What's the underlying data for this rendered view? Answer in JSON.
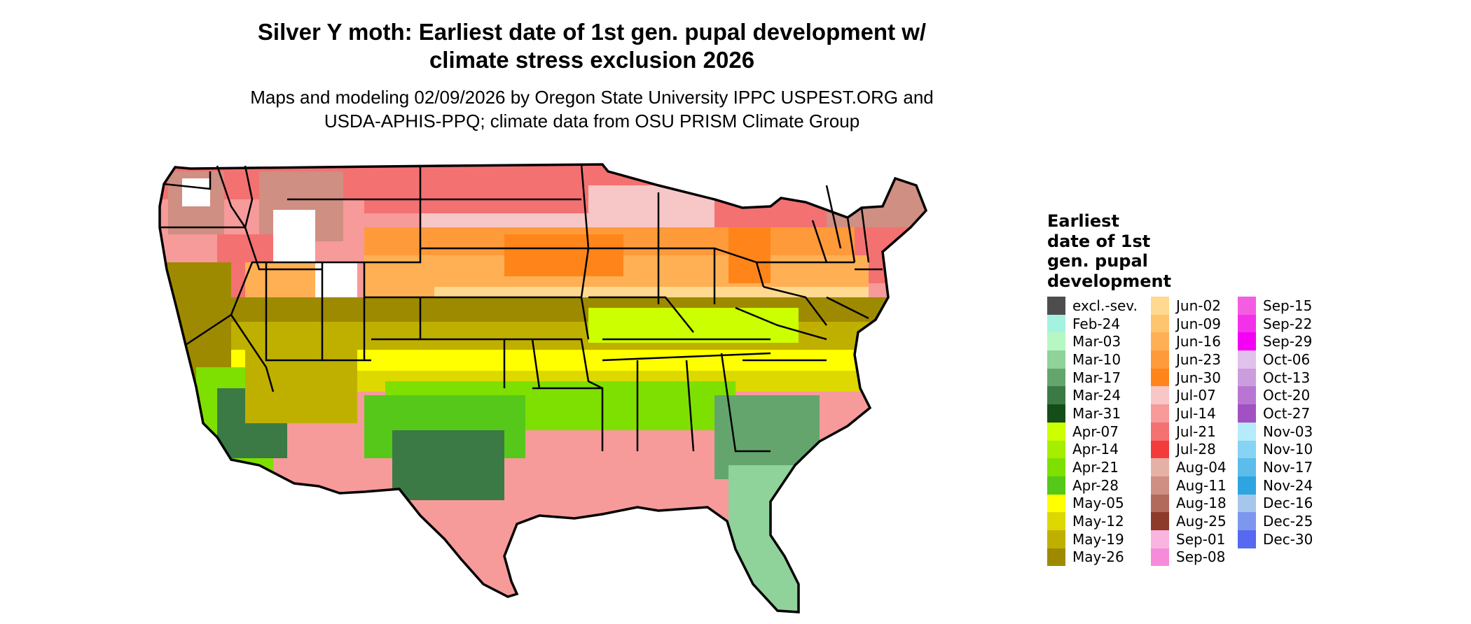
{
  "title_line1": "Silver Y moth: Earliest date of 1st gen. pupal development w/",
  "title_line2": "climate stress exclusion 2026",
  "subtitle_line1": "Maps and modeling 02/09/2026 by Oregon State University IPPC USPEST.ORG and",
  "subtitle_line2": "USDA-APHIS-PPQ; climate data from OSU PRISM Climate Group",
  "legend": {
    "title_lines": [
      "Earliest",
      "date of 1st",
      "gen. pupal",
      "development"
    ],
    "columns": [
      [
        {
          "label": "excl.-sev.",
          "color": "#4d4d4d"
        },
        {
          "label": "Feb-24",
          "color": "#a6f2e1"
        },
        {
          "label": "Mar-03",
          "color": "#b6f7c3"
        },
        {
          "label": "Mar-10",
          "color": "#8fd29a"
        },
        {
          "label": "Mar-17",
          "color": "#63a56d"
        },
        {
          "label": "Mar-24",
          "color": "#3b7a45"
        },
        {
          "label": "Mar-31",
          "color": "#154d18"
        },
        {
          "label": "Apr-07",
          "color": "#ccff00"
        },
        {
          "label": "Apr-14",
          "color": "#a6ee00"
        },
        {
          "label": "Apr-21",
          "color": "#7ee000"
        },
        {
          "label": "Apr-28",
          "color": "#55c81a"
        },
        {
          "label": "May-05",
          "color": "#ffff00"
        },
        {
          "label": "May-12",
          "color": "#ddd800"
        },
        {
          "label": "May-19",
          "color": "#bfb000"
        },
        {
          "label": "May-26",
          "color": "#9e8a00"
        }
      ],
      [
        {
          "label": "Jun-02",
          "color": "#ffd98f"
        },
        {
          "label": "Jun-09",
          "color": "#ffc46e"
        },
        {
          "label": "Jun-16",
          "color": "#ffb055"
        },
        {
          "label": "Jun-23",
          "color": "#ff9a3a"
        },
        {
          "label": "Jun-30",
          "color": "#ff851a"
        },
        {
          "label": "Jul-07",
          "color": "#f7c6c6"
        },
        {
          "label": "Jul-14",
          "color": "#f69a9a"
        },
        {
          "label": "Jul-21",
          "color": "#f47171"
        },
        {
          "label": "Jul-28",
          "color": "#f23c3c"
        },
        {
          "label": "Aug-04",
          "color": "#e5b1a6"
        },
        {
          "label": "Aug-11",
          "color": "#cf8f82"
        },
        {
          "label": "Aug-18",
          "color": "#b26a5b"
        },
        {
          "label": "Aug-25",
          "color": "#8e3a2b"
        },
        {
          "label": "Sep-01",
          "color": "#f9b4e0"
        },
        {
          "label": "Sep-08",
          "color": "#f68bdc"
        }
      ],
      [
        {
          "label": "Sep-15",
          "color": "#f45de0"
        },
        {
          "label": "Sep-22",
          "color": "#f331ea"
        },
        {
          "label": "Sep-29",
          "color": "#f300f5"
        },
        {
          "label": "Oct-06",
          "color": "#e0c1ec"
        },
        {
          "label": "Oct-13",
          "color": "#cc9dde"
        },
        {
          "label": "Oct-20",
          "color": "#b876d2"
        },
        {
          "label": "Oct-27",
          "color": "#a251c2"
        },
        {
          "label": "Nov-03",
          "color": "#b6ebf9"
        },
        {
          "label": "Nov-10",
          "color": "#87d3f3"
        },
        {
          "label": "Nov-17",
          "color": "#5cbdeb"
        },
        {
          "label": "Nov-24",
          "color": "#2ea5e0"
        },
        {
          "label": "Dec-16",
          "color": "#a6c6ec"
        },
        {
          "label": "Dec-25",
          "color": "#7c97ee"
        },
        {
          "label": "Dec-30",
          "color": "#5669f0"
        }
      ]
    ]
  }
}
